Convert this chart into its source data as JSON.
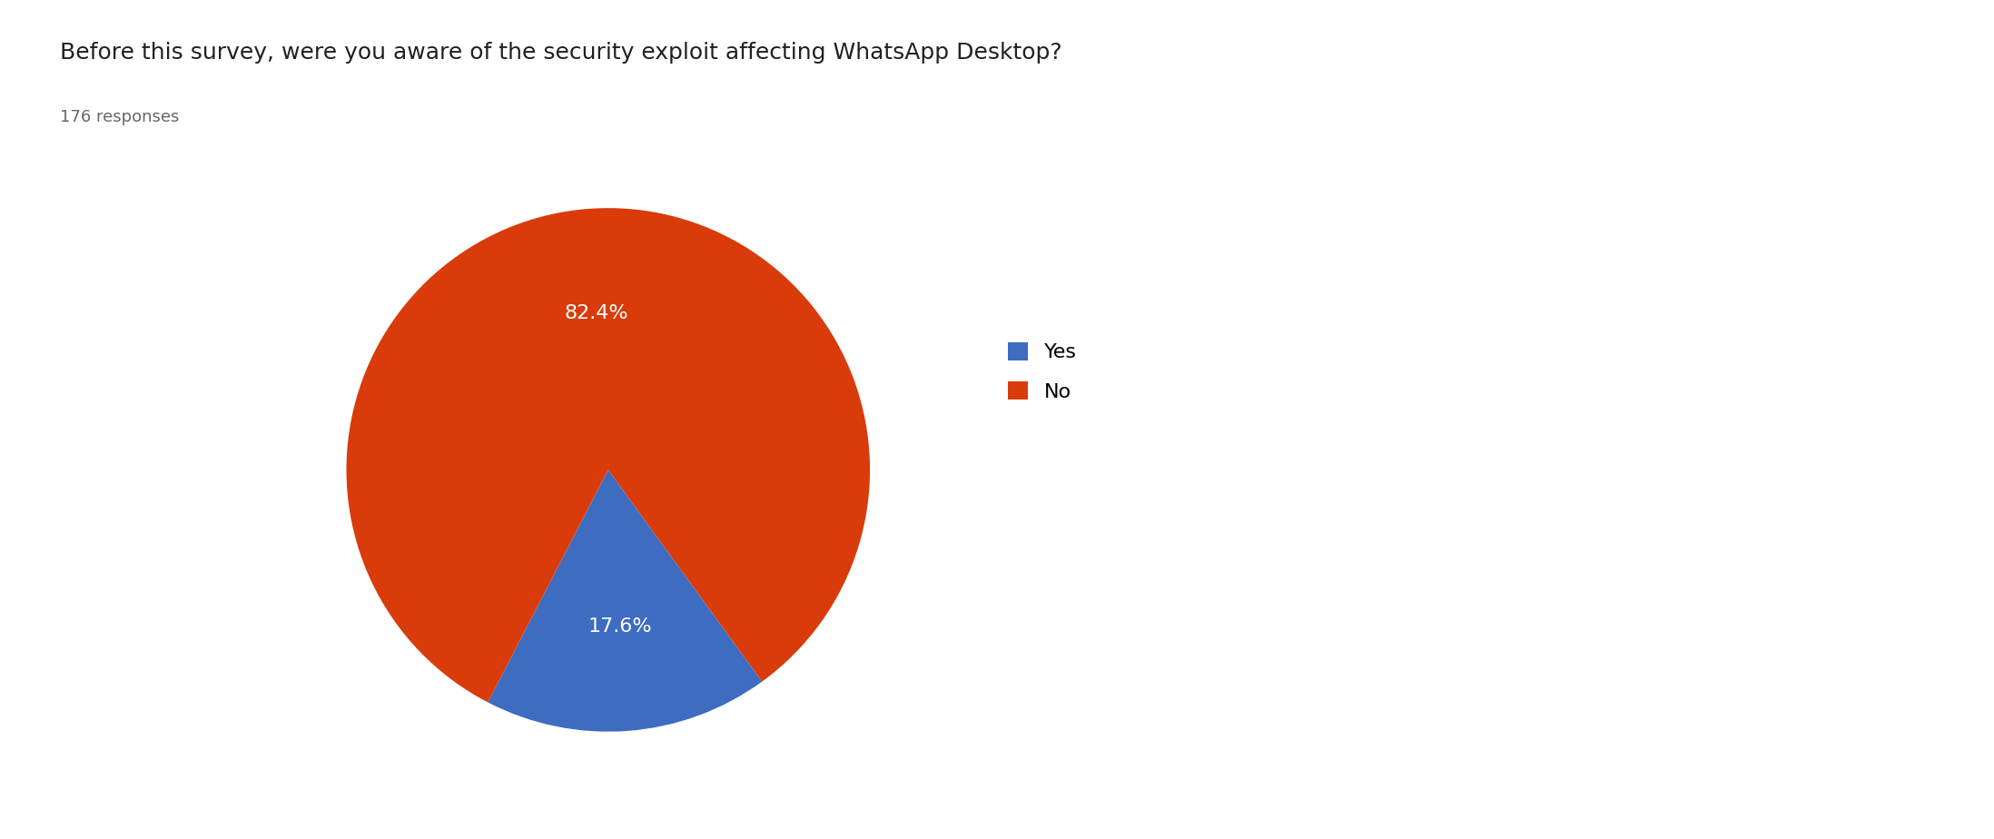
{
  "title": "Before this survey, were you aware of the security exploit affecting WhatsApp Desktop?",
  "subtitle": "176 responses",
  "labels": [
    "Yes",
    "No"
  ],
  "values": [
    17.6,
    82.4
  ],
  "colors": [
    "#3d6cc0",
    "#d93b0a"
  ],
  "pct_labels": [
    "17.6%",
    "82.4%"
  ],
  "legend_labels": [
    "Yes",
    "No"
  ],
  "title_fontsize": 18,
  "subtitle_fontsize": 13,
  "label_fontsize": 16,
  "legend_fontsize": 16,
  "background_color": "#ffffff",
  "text_color": "#212121",
  "startangle": -54
}
